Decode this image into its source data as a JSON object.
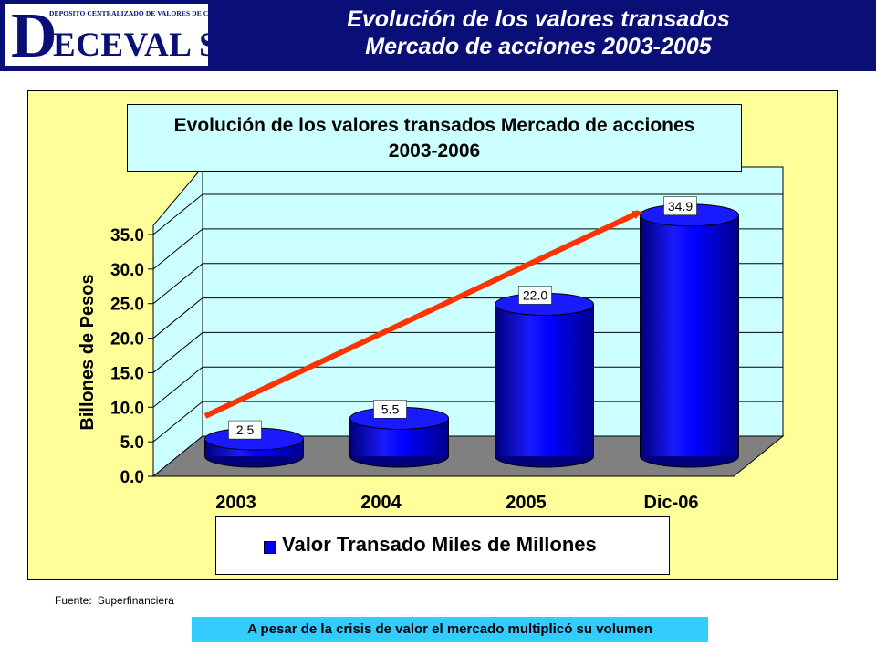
{
  "header": {
    "logo_subtitle": "DEPOSITO CENTRALIZADO DE VALORES DE COLOMBIA",
    "logo_initial": "D",
    "logo_name": "ECEVAL S.A.",
    "title_line1": "Evolución de los valores transados",
    "title_line2": "Mercado de acciones 2003-2005"
  },
  "colors": {
    "header_bg": "#0a0f78",
    "panel_bg": "#ffff99",
    "plot_wall": "#ccffff",
    "floor": "#808080",
    "bar": "#0000ff",
    "trend_arrow": "#ff3300",
    "note_bg": "#33ccff"
  },
  "chart_data": {
    "type": "bar",
    "title_line1": "Evolución de los valores transados  Mercado de acciones",
    "title_line2": "2003-2006",
    "ylabel": "Billones de Pesos",
    "xlabel": "",
    "categories": [
      "2003",
      "2004",
      "2005",
      "Dic-06"
    ],
    "series": [
      {
        "name": "Valor Transado Miles de Millones",
        "values": [
          2.5,
          5.5,
          22.0,
          34.9
        ]
      }
    ],
    "value_labels": [
      "2.5",
      "5.5",
      "22.0",
      "34.9"
    ],
    "ylim": [
      0,
      35
    ],
    "yticks": [
      "0.0",
      "5.0",
      "10.0",
      "15.0",
      "20.0",
      "25.0",
      "30.0",
      "35.0"
    ],
    "grid": true,
    "legend_position": "bottom",
    "style": "3d-cylinder",
    "annotation": "trend-arrow"
  },
  "footer": {
    "source_label": "Fuente:",
    "source_value": "Superfinanciera",
    "note": "A pesar de la crisis de valor el mercado multiplicó su volumen"
  }
}
